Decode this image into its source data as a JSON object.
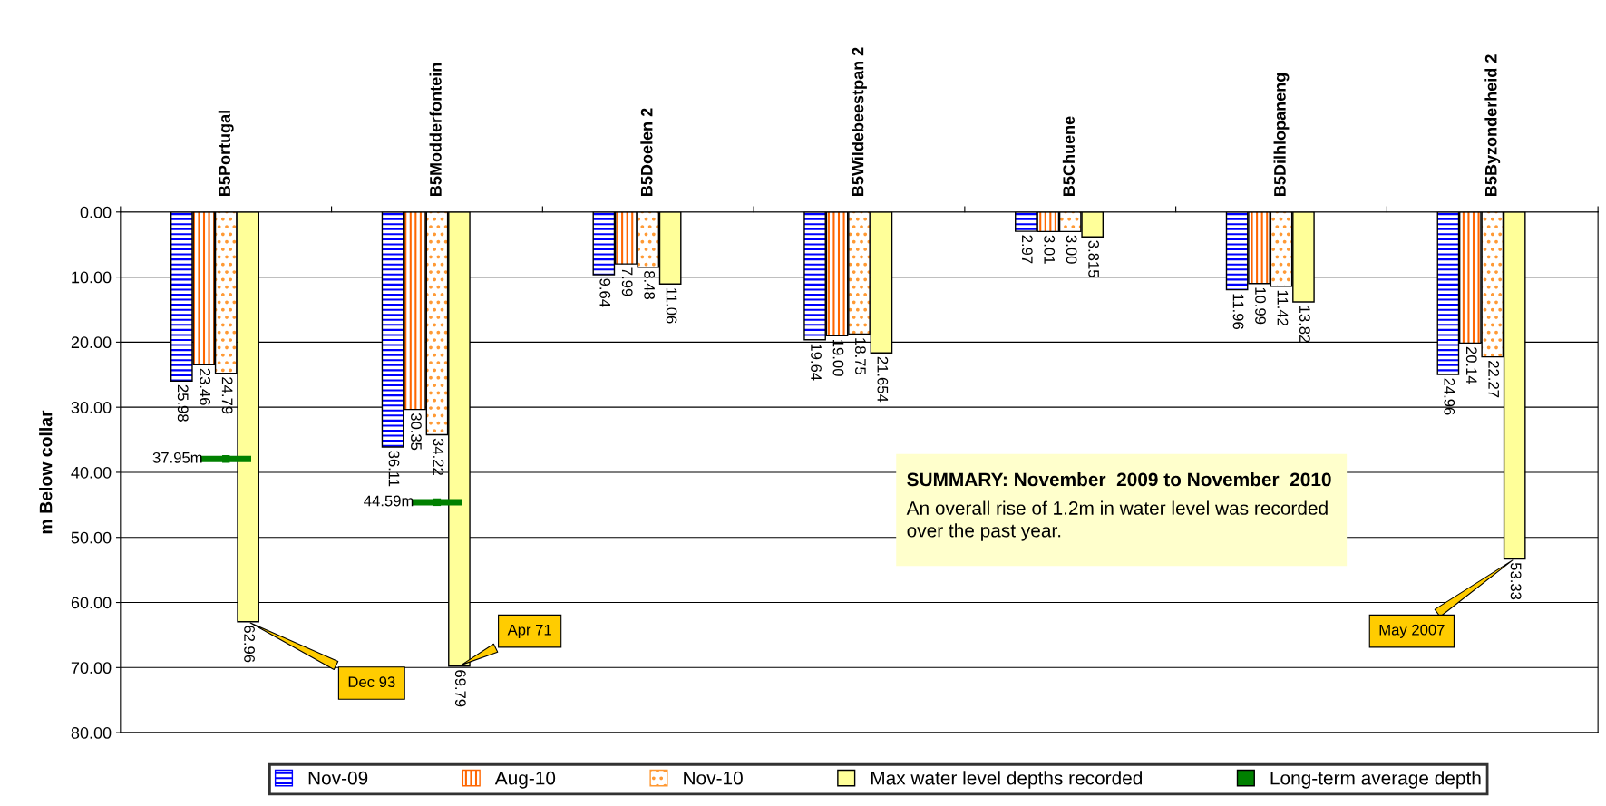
{
  "chart_data": {
    "type": "bar",
    "ylabel": "m Below collar",
    "categories": [
      "B5Portugal",
      "B5Modderfontein",
      "B5Doelen 2",
      "B5Wildebeestpan 2",
      "B5Chuene",
      "B5Dilhlopaneng",
      "B5Byzonderheid 2"
    ],
    "series": [
      {
        "name": "Nov-09",
        "color": "#0000ff",
        "values": [
          25.98,
          36.11,
          9.64,
          19.64,
          2.97,
          11.96,
          24.96
        ],
        "value_labels": [
          "25.98",
          "36.11",
          "9.64",
          "19.64",
          "2.97",
          "11.96",
          "24.96"
        ]
      },
      {
        "name": "Aug-10",
        "color": "#ff6600",
        "values": [
          23.46,
          30.35,
          7.99,
          19.0,
          3.01,
          10.99,
          20.14
        ],
        "value_labels": [
          "23.46",
          "30.35",
          "7.99",
          "19.00",
          "3.01",
          "10.99",
          "20.14"
        ]
      },
      {
        "name": "Nov-10",
        "color": "#ff9933",
        "values": [
          24.79,
          34.22,
          8.48,
          18.75,
          3.0,
          11.42,
          22.27
        ],
        "value_labels": [
          "24.79",
          "34.22",
          "8.48",
          "18.75",
          "3.00",
          "11.42",
          "22.27"
        ]
      },
      {
        "name": "Max water level depths recorded",
        "color": "#ffff99",
        "values": [
          62.96,
          69.79,
          11.06,
          21.654,
          3.815,
          13.82,
          53.33
        ],
        "value_labels": [
          "62.96",
          "69.79",
          "11.06",
          "21.654",
          "3.815",
          "13.82",
          "53.33"
        ]
      },
      {
        "name": "Long-term average depth",
        "type": "scatter",
        "color": "#008000",
        "values": [
          37.95,
          44.59,
          null,
          null,
          null,
          null,
          null
        ],
        "value_labels": [
          "37.95m",
          "44.59m",
          null,
          null,
          null,
          null,
          null
        ]
      }
    ],
    "ylim": [
      80,
      0
    ],
    "yticks": [
      {
        "value": 0,
        "label": "0.00"
      },
      {
        "value": 10,
        "label": "10.00"
      },
      {
        "value": 20,
        "label": "20.00"
      },
      {
        "value": 30,
        "label": "30.00"
      },
      {
        "value": 40,
        "label": "40.00"
      },
      {
        "value": 50,
        "label": "50.00"
      },
      {
        "value": 60,
        "label": "60.00"
      },
      {
        "value": 70,
        "label": "70.00"
      },
      {
        "value": 80,
        "label": "80.00"
      }
    ],
    "grid": "y",
    "legend": "bottom",
    "annotations": [
      "Dec 93",
      "Apr 71",
      "May 2007",
      "SUMMARY: November  2009 to November  2010",
      "An overall rise of 1.2m in water level was recorded\nover the past year."
    ]
  }
}
